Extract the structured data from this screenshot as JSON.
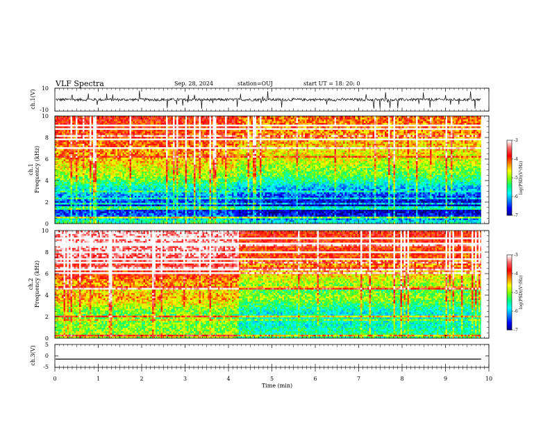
{
  "header": {
    "title": "VLF Spectra",
    "date": "Sep. 28, 2024",
    "station": "station=OUJ",
    "start_time": "start  UT =   18: 20: 0"
  },
  "chart_data": [
    {
      "type": "line",
      "name": "ch1-waveform",
      "ylabel": "ch.1(V)",
      "ylim": [
        -10,
        10
      ],
      "yticks": [
        "10",
        "-10"
      ],
      "baseline": 0,
      "noise_amplitude": 1.2,
      "spike_amplitude": 8,
      "xlim": [
        0,
        10
      ]
    },
    {
      "type": "heatmap",
      "name": "ch1-spectrogram",
      "ylabel_lines": [
        "ch.1",
        "Frequency  (kHz)"
      ],
      "ylim": [
        0,
        10
      ],
      "yticks": [
        "0",
        "2",
        "4",
        "6",
        "8",
        "10"
      ],
      "data_end_min": 9.82,
      "colorbar": {
        "label": "log(PSD)(V²/Hz)",
        "range": [
          -7,
          -3
        ],
        "ticks": [
          "-3",
          "-4",
          "-5",
          "-6",
          "-7"
        ]
      },
      "log_psd_profile": [
        {
          "f": 0.2,
          "v": -5.5
        },
        {
          "f": 0.8,
          "v": -6.4
        },
        {
          "f": 1.5,
          "v": -6.8
        },
        {
          "f": 2.5,
          "v": -6.3
        },
        {
          "f": 3.5,
          "v": -5.7
        },
        {
          "f": 4.5,
          "v": -5.0
        },
        {
          "f": 6.0,
          "v": -4.5
        },
        {
          "f": 8.0,
          "v": -4.1
        },
        {
          "f": 10.0,
          "v": -3.9
        }
      ],
      "segments": [
        {
          "t0": 0,
          "t1": 4.2,
          "offset": 0.1
        },
        {
          "t0": 4.2,
          "t1": 9.82,
          "offset": -0.2
        }
      ]
    },
    {
      "type": "heatmap",
      "name": "ch2-spectrogram",
      "ylabel_lines": [
        "ch.2",
        "Frequency  (kHz)"
      ],
      "ylim": [
        0,
        10
      ],
      "yticks": [
        "0",
        "2",
        "4",
        "6",
        "8",
        "10"
      ],
      "data_end_min": 9.82,
      "colorbar": {
        "label": "log(PSD)(V²/Hz)",
        "range": [
          -7,
          -3
        ],
        "ticks": [
          "-3",
          "-4",
          "-5",
          "-6",
          "-7"
        ]
      },
      "log_psd_profile": [
        {
          "f": 0.2,
          "v": -4.8
        },
        {
          "f": 1.0,
          "v": -5.0
        },
        {
          "f": 2.5,
          "v": -5.1
        },
        {
          "f": 3.9,
          "v": -4.3
        },
        {
          "f": 4.5,
          "v": -4.6
        },
        {
          "f": 6.0,
          "v": -3.9
        },
        {
          "f": 8.0,
          "v": -3.3
        },
        {
          "f": 10.0,
          "v": -3.2
        }
      ],
      "segments": [
        {
          "t0": 0,
          "t1": 4.2,
          "offset": 0.0
        },
        {
          "t0": 4.2,
          "t1": 9.82,
          "offset": -0.6
        }
      ]
    },
    {
      "type": "line",
      "name": "ch3-waveform",
      "ylabel": "ch.3(V)",
      "ylim": [
        -5,
        5
      ],
      "yticks": [
        "5",
        "0",
        "-5"
      ],
      "baseline": -1.4,
      "xlim": [
        0,
        10
      ]
    }
  ],
  "xaxis": {
    "label": "Time  (min)",
    "range": [
      0,
      10
    ],
    "ticks": [
      "0",
      "1",
      "2",
      "3",
      "4",
      "5",
      "6",
      "7",
      "8",
      "9",
      "10"
    ]
  },
  "colormap": [
    "#000080",
    "#0000ff",
    "#0080ff",
    "#00ffff",
    "#00ff80",
    "#80ff00",
    "#ffff00",
    "#ff8000",
    "#ff0000",
    "#ff6060",
    "#ffffff"
  ]
}
